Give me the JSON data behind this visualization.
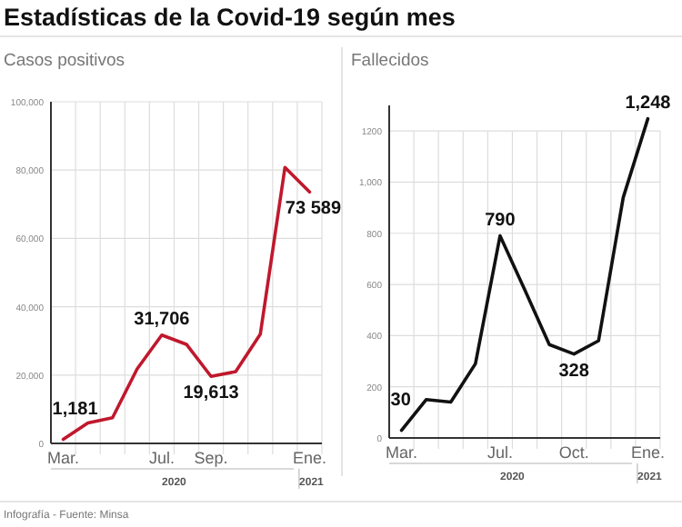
{
  "chart_data": [
    {
      "type": "line",
      "title": "Estadísticas de la Covid-19 según mes",
      "subtitle": "Casos positivos",
      "categories": [
        "Mar.",
        null,
        null,
        null,
        "Jul.",
        null,
        "Sep.",
        null,
        null,
        null,
        "Ene."
      ],
      "series": [
        {
          "color": "#c0182d",
          "values": [
            1181,
            6000,
            7500,
            21800,
            31706,
            29000,
            19613,
            21000,
            32000,
            80800,
            73589
          ],
          "value_labels": [
            "1,181",
            null,
            null,
            null,
            "31,706",
            null,
            "19,613",
            null,
            null,
            null,
            "73 589"
          ]
        }
      ],
      "ylim": [
        0,
        100000
      ],
      "yticks": [
        0,
        {
          "value": 20000,
          "label": "20,000"
        },
        {
          "value": 40000,
          "label": "40,000"
        },
        {
          "value": 60000,
          "label": "60,000"
        },
        {
          "value": 80000,
          "label": "80,000"
        },
        {
          "value": 100000,
          "label": "100,000"
        }
      ],
      "grid": true,
      "marker": "none",
      "line_style": "solid",
      "annotations": [
        "2020",
        "2021",
        "Infografía - Fuente: Minsa"
      ]
    },
    {
      "type": "line",
      "subtitle": "Fallecidos",
      "categories": [
        "Mar.",
        null,
        null,
        null,
        "Jul.",
        null,
        null,
        "Oct.",
        null,
        null,
        "Ene."
      ],
      "series": [
        {
          "color": "#111111",
          "values": [
            30,
            150,
            140,
            290,
            790,
            580,
            365,
            328,
            380,
            940,
            1248
          ],
          "value_labels": [
            "30",
            null,
            null,
            null,
            "790",
            null,
            null,
            "328",
            null,
            null,
            "1,248"
          ]
        }
      ],
      "ylim": [
        0,
        1300
      ],
      "yticks": [
        0,
        200,
        400,
        600,
        800,
        {
          "value": 1000,
          "label": "1,000"
        },
        1200
      ],
      "grid": true,
      "marker": "none",
      "line_style": "solid",
      "annotations": [
        "2020",
        "2021"
      ]
    }
  ]
}
